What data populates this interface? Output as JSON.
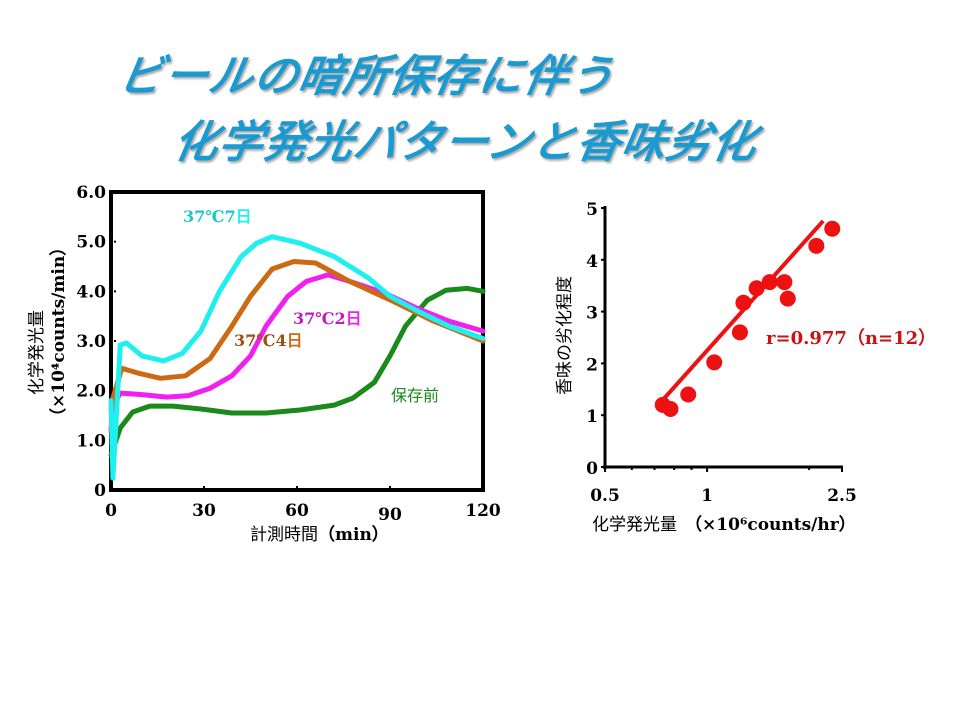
{
  "slide": {
    "title_line1": "ビールの暗所保存に伴う",
    "title_line2": "化学発光パターンと香味劣化",
    "title_color": "#1a9ad0"
  },
  "chart_data": [
    {
      "type": "line",
      "title": "",
      "xlabel": "計測時間",
      "xlabel_unit": "（min）",
      "ylabel": "化学発光量",
      "ylabel_unit": "（×10⁴counts/min）",
      "xlim": [
        0,
        120
      ],
      "ylim": [
        0,
        6.0
      ],
      "xticks": [
        0,
        30,
        60,
        90,
        120
      ],
      "xtick_labels": [
        "0",
        "30",
        "60",
        "90",
        "120"
      ],
      "yticks": [
        0,
        1,
        2,
        3,
        4,
        5,
        6
      ],
      "ytick_labels": [
        "0",
        "1.0",
        "2.0",
        "3.0",
        "4.0",
        "5.0",
        "6.0"
      ],
      "grid": false,
      "series": [
        {
          "name": "37℃7日",
          "color": "#1ef0f0",
          "label_parts": [
            "37℃7",
            "日"
          ],
          "x": [
            0,
            0.6,
            3,
            5,
            10,
            17,
            23,
            29,
            35,
            42,
            47,
            52,
            61,
            72,
            83,
            90,
            99,
            109,
            120
          ],
          "y": [
            1.8,
            0.24,
            2.92,
            2.96,
            2.7,
            2.6,
            2.75,
            3.2,
            4.0,
            4.7,
            4.97,
            5.1,
            4.97,
            4.7,
            4.27,
            3.9,
            3.6,
            3.3,
            3.05
          ]
        },
        {
          "name": "37℃4日",
          "color": "#cc6a14",
          "label_parts": [
            "37℃4",
            "日"
          ],
          "x": [
            0,
            0.6,
            3.5,
            9,
            16,
            24,
            32,
            39,
            45,
            52,
            59,
            66,
            77,
            91,
            104,
            120
          ],
          "y": [
            1.6,
            1.85,
            2.45,
            2.35,
            2.25,
            2.3,
            2.65,
            3.3,
            3.9,
            4.45,
            4.6,
            4.57,
            4.2,
            3.8,
            3.4,
            3.0
          ]
        },
        {
          "name": "37℃2日",
          "color": "#f020f0",
          "label_parts": [
            "37℃2",
            "日"
          ],
          "x": [
            0,
            0.6,
            3,
            10,
            18,
            25,
            32,
            39,
            45,
            50,
            57,
            63,
            70,
            77,
            88,
            99,
            109,
            120
          ],
          "y": [
            1.2,
            1.7,
            1.95,
            1.92,
            1.87,
            1.9,
            2.05,
            2.3,
            2.7,
            3.3,
            3.9,
            4.2,
            4.33,
            4.2,
            3.97,
            3.65,
            3.4,
            3.2
          ]
        },
        {
          "name": "保存前",
          "color": "#1a8a1a",
          "label_parts": [
            "",
            "保存前"
          ],
          "x": [
            0,
            3,
            7,
            12.5,
            20,
            29,
            39,
            50,
            61,
            72,
            78,
            85,
            90,
            95,
            102,
            108,
            115,
            120
          ],
          "y": [
            0.7,
            1.25,
            1.57,
            1.69,
            1.69,
            1.63,
            1.55,
            1.55,
            1.61,
            1.71,
            1.85,
            2.17,
            2.7,
            3.3,
            3.82,
            4.02,
            4.06,
            4.0
          ]
        }
      ]
    },
    {
      "type": "scatter",
      "title": "",
      "xlabel": "化学発光量",
      "xlabel_unit": "（×10⁶counts/hr）",
      "ylabel": "香味の劣化程度",
      "xscale": "log",
      "xlim": [
        0.5,
        2.5
      ],
      "ylim": [
        0,
        5
      ],
      "xticks_labeled": [
        0.5,
        1,
        2.5
      ],
      "xtick_labels": [
        "0.5",
        "1",
        "2.5"
      ],
      "xticks_minor": [
        0.6,
        0.7,
        0.8,
        0.9,
        2
      ],
      "yticks": [
        0,
        1,
        2,
        3,
        4,
        5
      ],
      "ytick_labels": [
        "0",
        "1",
        "2",
        "3",
        "4",
        "5"
      ],
      "grid": false,
      "point_color": "#ee1111",
      "points": [
        {
          "x": 0.74,
          "y": 1.2
        },
        {
          "x": 0.78,
          "y": 1.12
        },
        {
          "x": 0.88,
          "y": 1.4
        },
        {
          "x": 1.05,
          "y": 2.02
        },
        {
          "x": 1.25,
          "y": 2.6
        },
        {
          "x": 1.28,
          "y": 3.17
        },
        {
          "x": 1.4,
          "y": 3.45
        },
        {
          "x": 1.53,
          "y": 3.57
        },
        {
          "x": 1.69,
          "y": 3.57
        },
        {
          "x": 1.73,
          "y": 3.25
        },
        {
          "x": 2.1,
          "y": 4.27
        },
        {
          "x": 2.34,
          "y": 4.6
        }
      ],
      "fit_line": {
        "x": [
          0.73,
          2.2
        ],
        "y": [
          1.25,
          4.75
        ],
        "color": "#ee1111"
      },
      "annotation": "r=0.977（n=12）"
    }
  ]
}
